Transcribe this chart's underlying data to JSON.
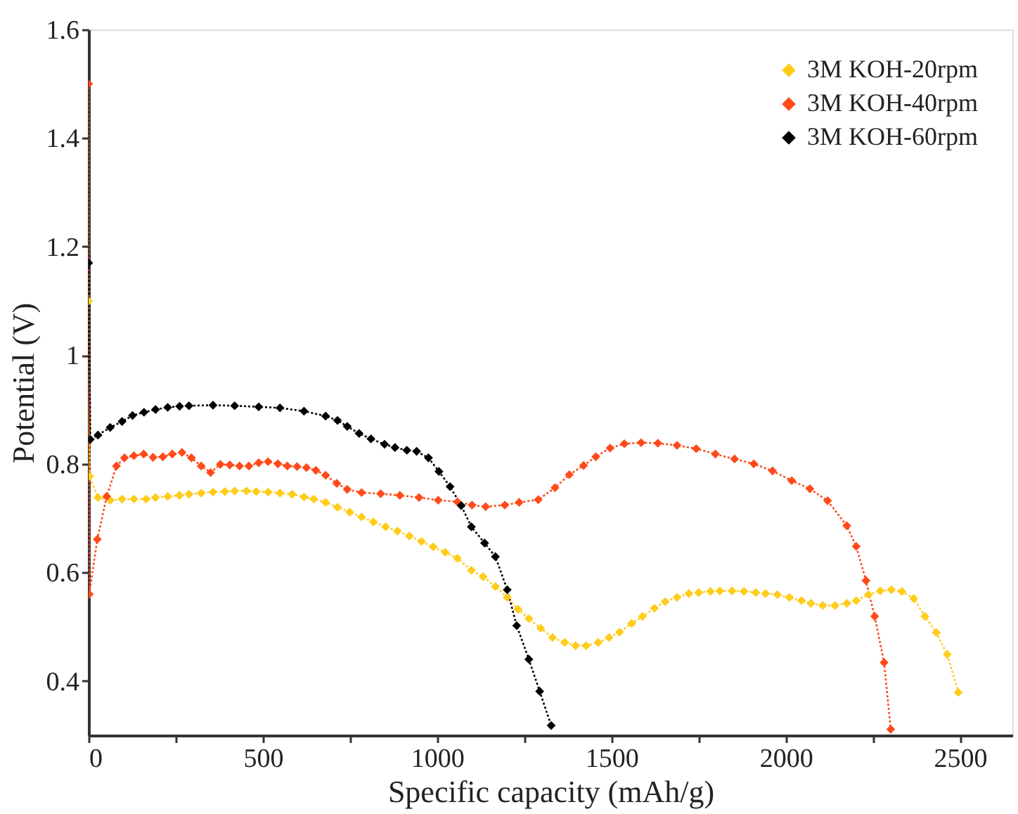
{
  "chart_data": {
    "type": "line",
    "xlabel": "Specific capacity (mAh/g)",
    "ylabel": "Potential (V)",
    "xlim": [
      0,
      2650
    ],
    "ylim": [
      0.3,
      1.6
    ],
    "xticks": [
      0,
      {
        "value": 250,
        "label": null
      },
      500,
      {
        "value": 750,
        "label": null
      },
      1000,
      {
        "value": 1250,
        "label": null
      },
      1500,
      {
        "value": 1750,
        "label": null
      },
      2000,
      {
        "value": 2250,
        "label": null
      },
      2500
    ],
    "yticks": [
      0.4,
      0.6,
      0.8,
      1,
      1.2,
      1.4,
      1.6
    ],
    "grid": false,
    "legend": "top right",
    "marker": "diamond",
    "line_style": "dotted",
    "series": [
      {
        "name": "3M KOH-20rpm",
        "color": "#ffcc1a",
        "x": [
          0,
          3,
          27,
          62,
          96,
          130,
          165,
          192,
          227,
          261,
          288,
          323,
          357,
          391,
          419,
          453,
          481,
          515,
          549,
          584,
          618,
          646,
          680,
          714,
          749,
          783,
          817,
          852,
          886,
          920,
          955,
          989,
          1023,
          1058,
          1098,
          1132,
          1167,
          1201,
          1232,
          1263,
          1297,
          1331,
          1366,
          1397,
          1427,
          1462,
          1493,
          1523,
          1558,
          1589,
          1623,
          1654,
          1688,
          1722,
          1750,
          1784,
          1811,
          1846,
          1880,
          1914,
          1942,
          1976,
          2010,
          2045,
          2072,
          2106,
          2141,
          2175,
          2202,
          2237,
          2271,
          2303,
          2333,
          2367,
          2399,
          2432,
          2463,
          2495
        ],
        "values": [
          1.1,
          0.777,
          0.738,
          0.733,
          0.735,
          0.735,
          0.735,
          0.738,
          0.74,
          0.742,
          0.744,
          0.746,
          0.748,
          0.749,
          0.75,
          0.75,
          0.749,
          0.748,
          0.746,
          0.744,
          0.739,
          0.735,
          0.729,
          0.72,
          0.711,
          0.702,
          0.693,
          0.684,
          0.676,
          0.667,
          0.657,
          0.647,
          0.637,
          0.626,
          0.604,
          0.592,
          0.574,
          0.554,
          0.532,
          0.515,
          0.497,
          0.48,
          0.471,
          0.465,
          0.465,
          0.471,
          0.48,
          0.49,
          0.506,
          0.519,
          0.534,
          0.546,
          0.554,
          0.561,
          0.563,
          0.565,
          0.566,
          0.566,
          0.565,
          0.563,
          0.561,
          0.559,
          0.554,
          0.548,
          0.543,
          0.539,
          0.539,
          0.543,
          0.548,
          0.559,
          0.566,
          0.568,
          0.565,
          0.552,
          0.519,
          0.489,
          0.449,
          0.379
        ]
      },
      {
        "name": "3M  KOH-40rpm",
        "color": "#ff4a1a",
        "x": [
          0,
          2,
          25,
          52,
          80,
          103,
          130,
          158,
          185,
          213,
          240,
          268,
          295,
          323,
          350,
          378,
          405,
          433,
          460,
          488,
          515,
          543,
          570,
          598,
          625,
          652,
          680,
          712,
          742,
          783,
          838,
          893,
          948,
          1003,
          1058,
          1100,
          1139,
          1194,
          1235,
          1290,
          1338,
          1379,
          1420,
          1455,
          1496,
          1537,
          1585,
          1633,
          1688,
          1743,
          1798,
          1853,
          1908,
          1962,
          2017,
          2069,
          2120,
          2175,
          2202,
          2230,
          2255,
          2282,
          2301
        ],
        "values": [
          1.5,
          0.56,
          0.661,
          0.74,
          0.796,
          0.811,
          0.815,
          0.818,
          0.812,
          0.813,
          0.818,
          0.821,
          0.811,
          0.796,
          0.784,
          0.799,
          0.798,
          0.796,
          0.796,
          0.802,
          0.804,
          0.8,
          0.796,
          0.795,
          0.793,
          0.788,
          0.779,
          0.764,
          0.753,
          0.747,
          0.745,
          0.742,
          0.738,
          0.733,
          0.73,
          0.724,
          0.721,
          0.724,
          0.729,
          0.734,
          0.756,
          0.78,
          0.797,
          0.813,
          0.829,
          0.837,
          0.839,
          0.838,
          0.834,
          0.828,
          0.818,
          0.809,
          0.8,
          0.787,
          0.769,
          0.754,
          0.732,
          0.686,
          0.648,
          0.585,
          0.519,
          0.434,
          0.311
        ]
      },
      {
        "name": "3M KOH-60rpm",
        "color": "#000000",
        "x": [
          0,
          5,
          27,
          62,
          96,
          126,
          159,
          192,
          227,
          261,
          288,
          357,
          419,
          488,
          549,
          618,
          680,
          714,
          742,
          776,
          810,
          849,
          879,
          913,
          941,
          975,
          1005,
          1037,
          1069,
          1098,
          1136,
          1167,
          1201,
          1228,
          1263,
          1294,
          1327
        ],
        "values": [
          1.17,
          0.845,
          0.853,
          0.867,
          0.878,
          0.889,
          0.895,
          0.9,
          0.904,
          0.906,
          0.907,
          0.908,
          0.907,
          0.905,
          0.903,
          0.897,
          0.888,
          0.88,
          0.869,
          0.856,
          0.846,
          0.836,
          0.83,
          0.825,
          0.823,
          0.811,
          0.786,
          0.758,
          0.723,
          0.684,
          0.654,
          0.629,
          0.568,
          0.502,
          0.44,
          0.381,
          0.318
        ]
      }
    ]
  }
}
